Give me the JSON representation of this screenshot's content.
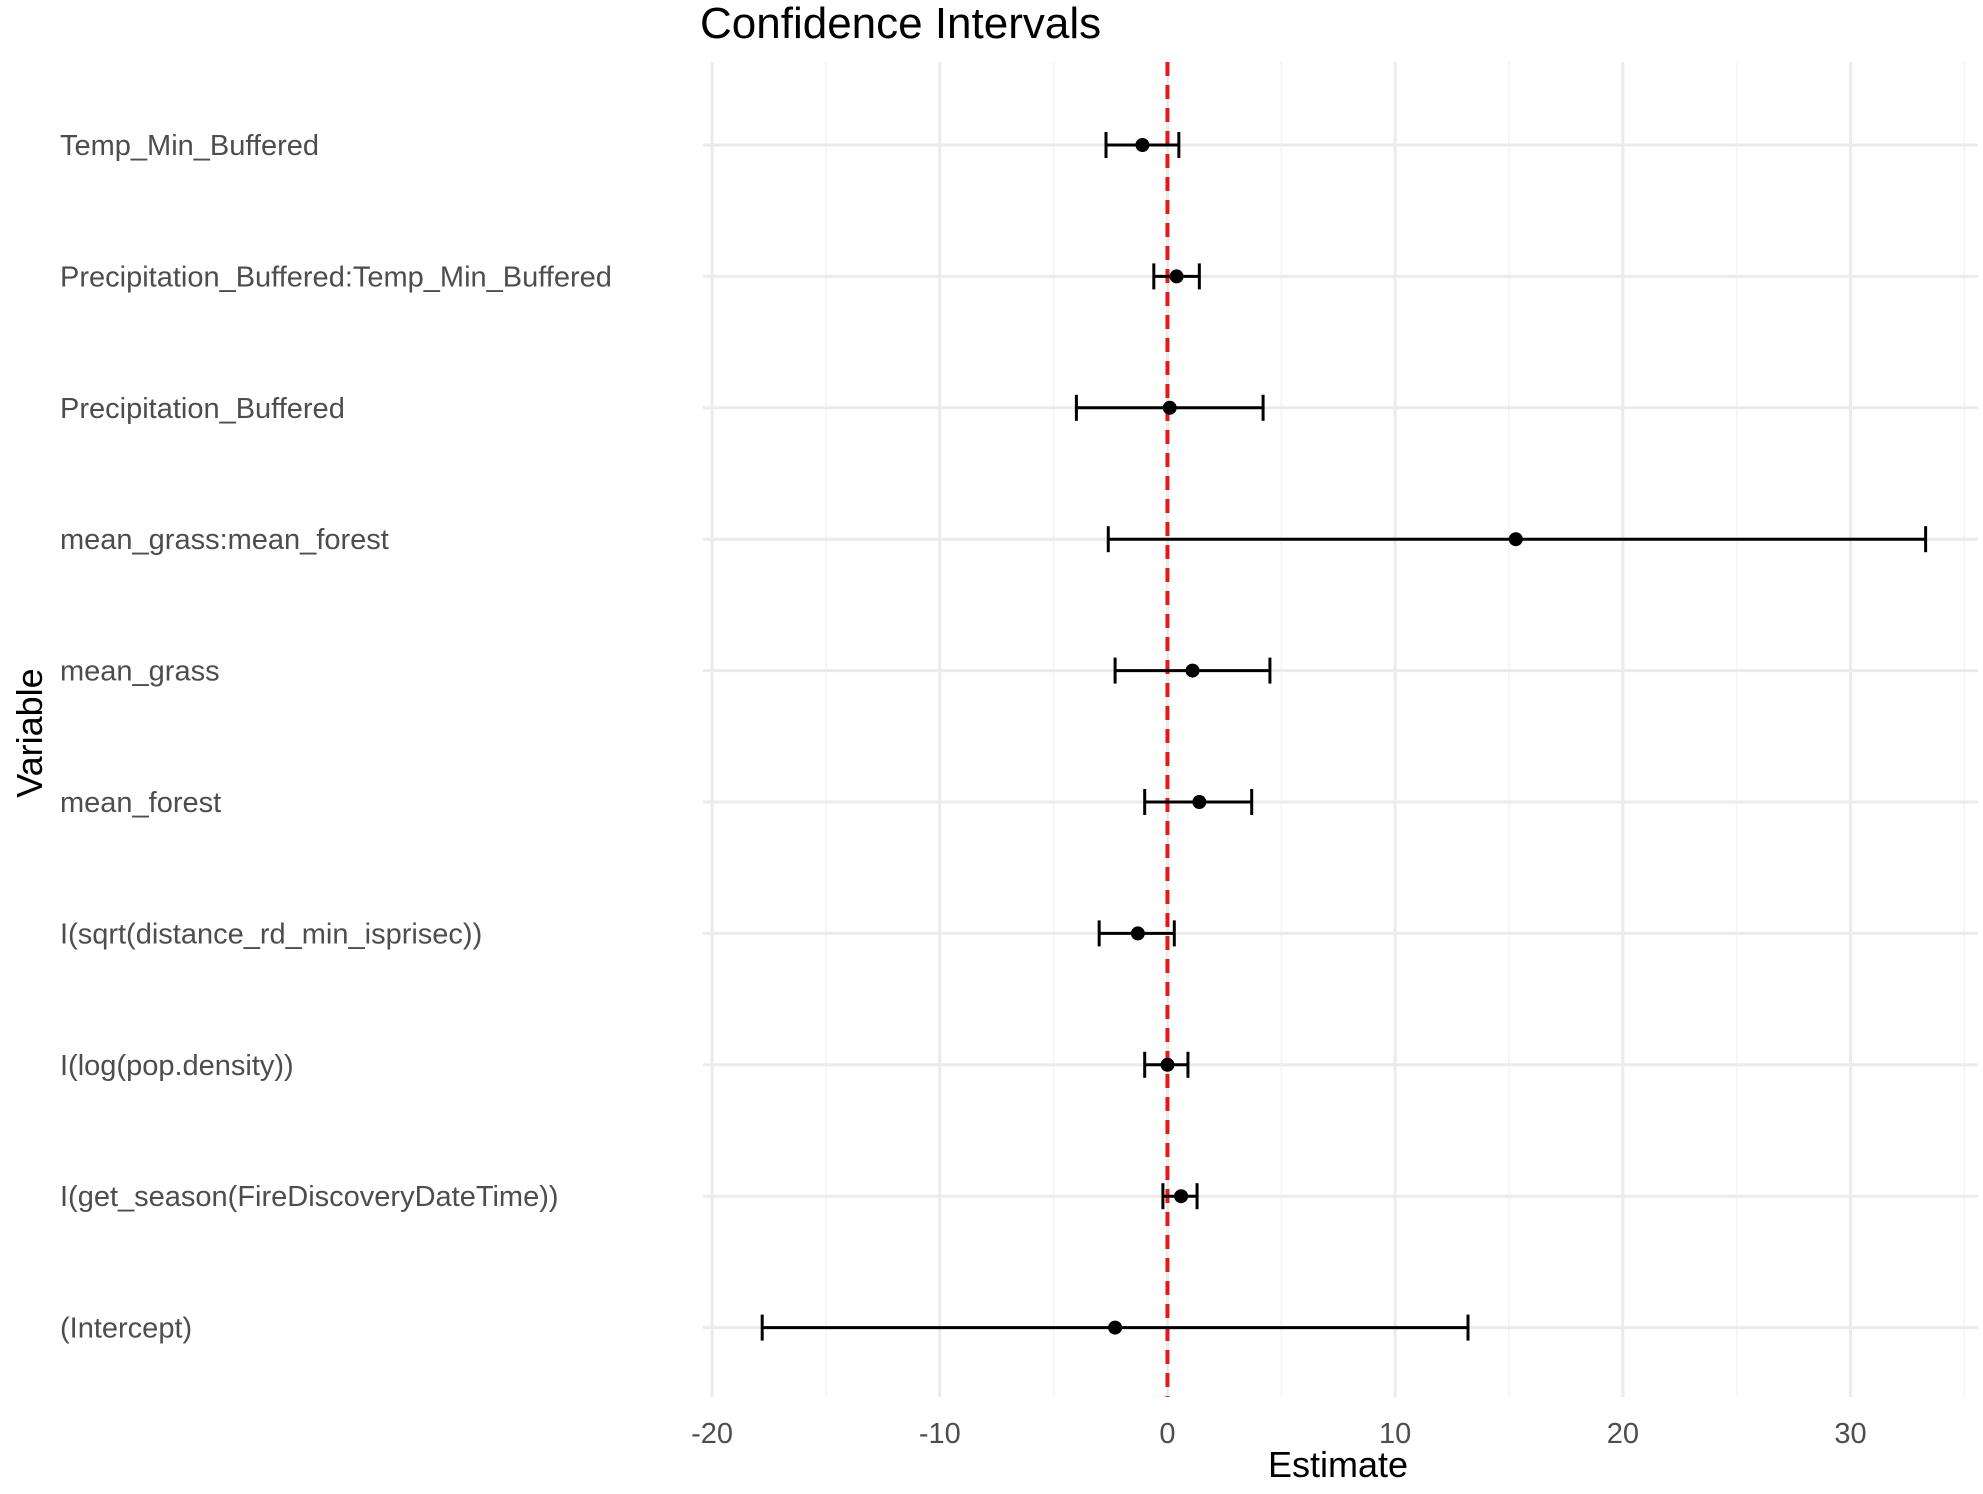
{
  "chart_data": {
    "type": "errorbar",
    "title": "Confidence Intervals",
    "xlabel": "Estimate",
    "ylabel": "Variable",
    "xlim": [
      -20.4,
      35.6
    ],
    "x_ticks": [
      -20,
      -10,
      0,
      10,
      20,
      30
    ],
    "x_tick_labels": [
      "-20",
      "-10",
      "0",
      "10",
      "20",
      "30"
    ],
    "reference_line": {
      "x": 0,
      "style": "dashed",
      "color": "#e31a1c"
    },
    "grid": true,
    "legend": "none",
    "rows": [
      {
        "label": "Temp_Min_Buffered",
        "estimate": -1.1,
        "lower": -2.7,
        "upper": 0.5
      },
      {
        "label": "Precipitation_Buffered:Temp_Min_Buffered",
        "estimate": 0.4,
        "lower": -0.6,
        "upper": 1.4
      },
      {
        "label": "Precipitation_Buffered",
        "estimate": 0.1,
        "lower": -4.0,
        "upper": 4.2
      },
      {
        "label": "mean_grass:mean_forest",
        "estimate": 15.3,
        "lower": -2.6,
        "upper": 33.3
      },
      {
        "label": "mean_grass",
        "estimate": 1.1,
        "lower": -2.3,
        "upper": 4.5
      },
      {
        "label": "mean_forest",
        "estimate": 1.4,
        "lower": -1.0,
        "upper": 3.7
      },
      {
        "label": "I(sqrt(distance_rd_min_isprisec))",
        "estimate": -1.3,
        "lower": -3.0,
        "upper": 0.3
      },
      {
        "label": "I(log(pop.density))",
        "estimate": 0.0,
        "lower": -1.0,
        "upper": 0.9
      },
      {
        "label": "I(get_season(FireDiscoveryDateTime))",
        "estimate": 0.6,
        "lower": -0.2,
        "upper": 1.3
      },
      {
        "label": "(Intercept)",
        "estimate": -2.3,
        "lower": -17.8,
        "upper": 13.2
      }
    ]
  }
}
